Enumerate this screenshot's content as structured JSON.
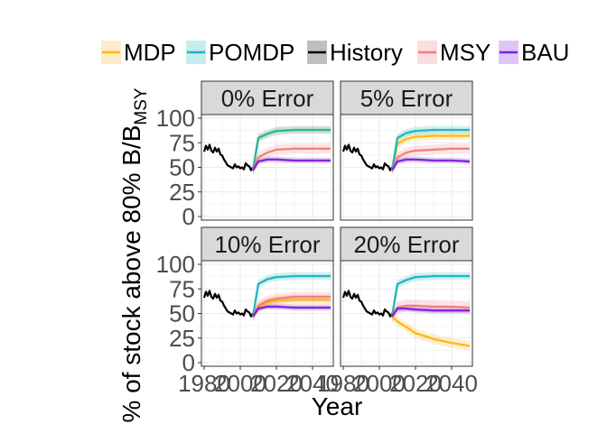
{
  "chart_data": {
    "type": "line",
    "xlabel": "Year",
    "ylabel": "% of stock above 80% B/B",
    "ylabel_subscript": "MSY",
    "xlim": [
      1980,
      2050
    ],
    "ylim": [
      0,
      100
    ],
    "x_ticks": [
      1980,
      2000,
      2020,
      2040
    ],
    "y_ticks": [
      0,
      25,
      50,
      75,
      100
    ],
    "grid": true,
    "legend_position": "top",
    "legend": [
      {
        "key": "MDP",
        "label": "MDP",
        "color": "#FDB515"
      },
      {
        "key": "POMDP",
        "label": "POMDP",
        "color": "#1AB5BD"
      },
      {
        "key": "History",
        "label": "History",
        "color": "#000000"
      },
      {
        "key": "MSY",
        "label": "MSY",
        "color": "#F07C7C"
      },
      {
        "key": "BAU",
        "label": "BAU",
        "color": "#7A1FE0"
      }
    ],
    "history": {
      "x": [
        1980,
        1981,
        1982,
        1983,
        1984,
        1985,
        1986,
        1987,
        1988,
        1989,
        1990,
        1991,
        1992,
        1993,
        1994,
        1995,
        1996,
        1997,
        1998,
        1999,
        2000,
        2001,
        2002,
        2003,
        2004,
        2005,
        2006,
        2007
      ],
      "y": [
        66,
        72,
        68,
        73,
        67,
        65,
        70,
        66,
        69,
        63,
        62,
        58,
        55,
        52,
        51,
        50,
        49,
        53,
        50,
        51,
        49,
        50,
        48,
        54,
        52,
        51,
        47,
        50
      ]
    },
    "panels": [
      {
        "strip": "0% Error",
        "series": [
          {
            "name": "MDP",
            "x": [
              2007,
              2010,
              2015,
              2020,
              2030,
              2040,
              2050
            ],
            "y": [
              47,
              80,
              84,
              87,
              88,
              88,
              88
            ],
            "band": 4
          },
          {
            "name": "POMDP",
            "x": [
              2007,
              2010,
              2015,
              2020,
              2030,
              2040,
              2050
            ],
            "y": [
              47,
              80,
              84,
              87,
              88,
              88,
              88
            ],
            "band": 4
          },
          {
            "name": "MSY",
            "x": [
              2007,
              2010,
              2015,
              2020,
              2030,
              2040,
              2050
            ],
            "y": [
              47,
              60,
              65,
              68,
              69,
              69,
              69
            ],
            "band": 5
          },
          {
            "name": "BAU",
            "x": [
              2007,
              2010,
              2015,
              2020,
              2030,
              2040,
              2050
            ],
            "y": [
              47,
              56,
              58,
              58,
              57,
              57,
              57
            ],
            "band": 3
          }
        ]
      },
      {
        "strip": "5% Error",
        "series": [
          {
            "name": "MDP",
            "x": [
              2007,
              2010,
              2015,
              2020,
              2030,
              2040,
              2050
            ],
            "y": [
              47,
              74,
              79,
              81,
              82,
              82,
              82
            ],
            "band": 4
          },
          {
            "name": "POMDP",
            "x": [
              2007,
              2010,
              2015,
              2020,
              2030,
              2040,
              2050
            ],
            "y": [
              47,
              80,
              85,
              87,
              88,
              88,
              88
            ],
            "band": 4
          },
          {
            "name": "MSY",
            "x": [
              2007,
              2010,
              2015,
              2020,
              2030,
              2040,
              2050
            ],
            "y": [
              47,
              60,
              65,
              67,
              68,
              69,
              69
            ],
            "band": 5
          },
          {
            "name": "BAU",
            "x": [
              2007,
              2010,
              2015,
              2020,
              2030,
              2040,
              2050
            ],
            "y": [
              47,
              56,
              58,
              58,
              57,
              57,
              56
            ],
            "band": 3
          }
        ]
      },
      {
        "strip": "10% Error",
        "series": [
          {
            "name": "MDP",
            "x": [
              2007,
              2010,
              2015,
              2020,
              2030,
              2040,
              2050
            ],
            "y": [
              47,
              57,
              61,
              63,
              64,
              64,
              64
            ],
            "band": 5
          },
          {
            "name": "POMDP",
            "x": [
              2007,
              2010,
              2015,
              2020,
              2030,
              2040,
              2050
            ],
            "y": [
              47,
              80,
              85,
              87,
              88,
              88,
              88
            ],
            "band": 4
          },
          {
            "name": "MSY",
            "x": [
              2007,
              2010,
              2015,
              2020,
              2030,
              2040,
              2050
            ],
            "y": [
              47,
              58,
              63,
              65,
              67,
              67,
              67
            ],
            "band": 5
          },
          {
            "name": "BAU",
            "x": [
              2007,
              2010,
              2015,
              2020,
              2030,
              2040,
              2050
            ],
            "y": [
              47,
              55,
              57,
              57,
              56,
              56,
              56
            ],
            "band": 3
          }
        ]
      },
      {
        "strip": "20% Error",
        "series": [
          {
            "name": "MDP",
            "x": [
              2007,
              2010,
              2015,
              2020,
              2030,
              2040,
              2050
            ],
            "y": [
              47,
              42,
              36,
              30,
              24,
              20,
              17
            ],
            "band": 5
          },
          {
            "name": "POMDP",
            "x": [
              2007,
              2010,
              2015,
              2020,
              2030,
              2040,
              2050
            ],
            "y": [
              47,
              80,
              84,
              87,
              88,
              88,
              88
            ],
            "band": 4
          },
          {
            "name": "MSY",
            "x": [
              2007,
              2010,
              2015,
              2020,
              2030,
              2040,
              2050
            ],
            "y": [
              47,
              56,
              58,
              58,
              57,
              57,
              56
            ],
            "band": 6
          },
          {
            "name": "BAU",
            "x": [
              2007,
              2010,
              2015,
              2020,
              2030,
              2040,
              2050
            ],
            "y": [
              47,
              55,
              55,
              54,
              53,
              53,
              53
            ],
            "band": 3
          }
        ]
      }
    ]
  }
}
